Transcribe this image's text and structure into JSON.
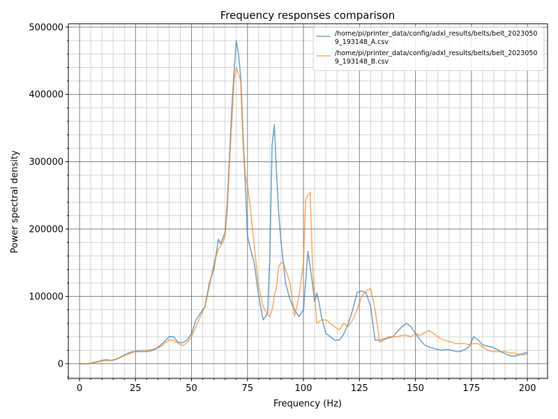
{
  "chart_data": {
    "type": "line",
    "title": "Frequency responses comparison",
    "xlabel": "Frequency (Hz)",
    "ylabel": "Power spectral density",
    "xlim": [
      -5,
      209
    ],
    "ylim": [
      -22000,
      505000
    ],
    "xticks": [
      0,
      25,
      50,
      75,
      100,
      125,
      150,
      175,
      200
    ],
    "xtick_labels": [
      "0",
      "25",
      "50",
      "75",
      "100",
      "125",
      "150",
      "175",
      "200"
    ],
    "yticks": [
      0,
      100000,
      200000,
      300000,
      400000,
      500000
    ],
    "ytick_labels": [
      "0",
      "100000",
      "200000",
      "300000",
      "400000",
      "500000"
    ],
    "grid": true,
    "legend_position": "top-right",
    "series": [
      {
        "name": "/home/pi/printer_data/config/adxl_results/belts/belt_20230509_193148_A.csv",
        "legend_lines": [
          "/home/pi/printer_data/config/adxl_results/belts/belt_2023050",
          "9_193148_A.csv"
        ],
        "color": "#1f77b4",
        "x": [
          0,
          2,
          4,
          6,
          8,
          10,
          12,
          14,
          16,
          18,
          20,
          22,
          24,
          26,
          28,
          30,
          32,
          34,
          36,
          38,
          40,
          42,
          44,
          46,
          48,
          50,
          52,
          54,
          56,
          58,
          60,
          62,
          63,
          65,
          66,
          67,
          68,
          69,
          70,
          71,
          72,
          73,
          74,
          75,
          76,
          78,
          80,
          82,
          84,
          85,
          86,
          87,
          88,
          89,
          90,
          91,
          92,
          94,
          96,
          98,
          100,
          102,
          104,
          105,
          106,
          107,
          108,
          110,
          112,
          114,
          116,
          118,
          120,
          122,
          124,
          126,
          128,
          130,
          132,
          134,
          136,
          138,
          140,
          142,
          144,
          146,
          148,
          150,
          152,
          154,
          156,
          158,
          160,
          162,
          164,
          166,
          168,
          170,
          172,
          174,
          176,
          178,
          180,
          182,
          184,
          186,
          188,
          190,
          192,
          194,
          196,
          198,
          200
        ],
        "y": [
          0,
          0,
          0,
          1500,
          3000,
          5000,
          6000,
          5000,
          6000,
          9000,
          13000,
          16000,
          18000,
          18000,
          18000,
          18000,
          19000,
          22000,
          27000,
          33000,
          40000,
          40000,
          32000,
          31000,
          35000,
          45000,
          65000,
          75000,
          85000,
          120000,
          140000,
          185000,
          178000,
          195000,
          240000,
          310000,
          380000,
          435000,
          480000,
          460000,
          425000,
          340000,
          270000,
          190000,
          175000,
          150000,
          100000,
          65000,
          75000,
          160000,
          325000,
          355000,
          280000,
          220000,
          180000,
          150000,
          120000,
          95000,
          80000,
          70000,
          80000,
          167000,
          120000,
          92000,
          105000,
          90000,
          70000,
          45000,
          40000,
          35000,
          35000,
          44000,
          60000,
          80000,
          106000,
          108000,
          105000,
          85000,
          35000,
          35000,
          37000,
          38000,
          40000,
          48000,
          55000,
          60000,
          55000,
          45000,
          36000,
          28000,
          25000,
          23000,
          21000,
          20000,
          21000,
          20000,
          18000,
          18000,
          21000,
          25000,
          40000,
          35000,
          28000,
          26000,
          25000,
          22000,
          18000,
          15000,
          12000,
          11000,
          13000,
          15000,
          17000
        ]
      },
      {
        "name": "/home/pi/printer_data/config/adxl_results/belts/belt_20230509_193148_B.csv",
        "legend_lines": [
          "/home/pi/printer_data/config/adxl_results/belts/belt_2023050",
          "9_193148_B.csv"
        ],
        "color": "#ff7f0e",
        "x": [
          0,
          2,
          4,
          6,
          8,
          10,
          12,
          14,
          16,
          18,
          20,
          22,
          24,
          26,
          28,
          30,
          32,
          34,
          36,
          38,
          40,
          42,
          44,
          46,
          48,
          50,
          52,
          54,
          56,
          58,
          60,
          62,
          64,
          65,
          66,
          67,
          68,
          69,
          70,
          71,
          72,
          73,
          74,
          75,
          76,
          78,
          80,
          82,
          84,
          85,
          86,
          87,
          88,
          89,
          90,
          91,
          92,
          94,
          96,
          98,
          100,
          101,
          102,
          103,
          104,
          105,
          106,
          108,
          110,
          112,
          114,
          116,
          118,
          120,
          122,
          124,
          126,
          128,
          130,
          132,
          134,
          136,
          138,
          140,
          142,
          144,
          146,
          148,
          150,
          152,
          154,
          156,
          158,
          160,
          162,
          164,
          166,
          168,
          170,
          172,
          174,
          176,
          178,
          180,
          182,
          184,
          186,
          188,
          190,
          192,
          194,
          196,
          198,
          200
        ],
        "y": [
          0,
          0,
          0,
          1000,
          2500,
          4000,
          4500,
          4500,
          6500,
          9000,
          12000,
          14500,
          17000,
          19500,
          20000,
          20000,
          21000,
          22500,
          25000,
          30000,
          35000,
          35000,
          30000,
          27000,
          31000,
          40000,
          55000,
          70000,
          85000,
          115000,
          150000,
          170000,
          180000,
          190000,
          230000,
          300000,
          360000,
          420000,
          440000,
          430000,
          420000,
          330000,
          280000,
          265000,
          240000,
          175000,
          115000,
          85000,
          72000,
          70000,
          80000,
          100000,
          115000,
          145000,
          150000,
          150000,
          140000,
          120000,
          70000,
          100000,
          150000,
          245000,
          250000,
          255000,
          150000,
          100000,
          60000,
          65000,
          65000,
          60000,
          55000,
          50000,
          60000,
          55000,
          65000,
          80000,
          100000,
          108000,
          112000,
          80000,
          32000,
          35000,
          40000,
          40000,
          40000,
          42000,
          42000,
          40000,
          45000,
          42000,
          46000,
          49000,
          45000,
          40000,
          36000,
          34000,
          32000,
          30000,
          30000,
          30000,
          28000,
          30000,
          30000,
          25000,
          20000,
          18000,
          18000,
          18000,
          18000,
          16000,
          16000,
          14000,
          13000,
          15000
        ]
      }
    ]
  }
}
